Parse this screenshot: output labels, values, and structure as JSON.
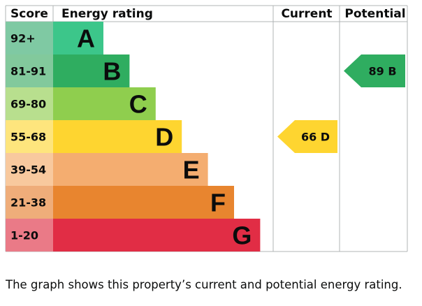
{
  "headers": {
    "score": "Score",
    "rating": "Energy rating",
    "current": "Current",
    "potential": "Potential"
  },
  "chart_data": {
    "type": "bar",
    "title": "",
    "bands": [
      {
        "letter": "A",
        "score": "92+",
        "color": "#3cc68a",
        "score_bg": "#7fc9a3"
      },
      {
        "letter": "B",
        "score": "81-91",
        "color": "#2fad60",
        "score_bg": "#82c99c"
      },
      {
        "letter": "C",
        "score": "69-80",
        "color": "#8fce4e",
        "score_bg": "#b8df8e"
      },
      {
        "letter": "D",
        "score": "55-68",
        "color": "#fed530",
        "score_bg": "#fee57d"
      },
      {
        "letter": "E",
        "score": "39-54",
        "color": "#f4ad70",
        "score_bg": "#f8c99e"
      },
      {
        "letter": "F",
        "score": "21-38",
        "color": "#e8852f",
        "score_bg": "#efad7a"
      },
      {
        "letter": "G",
        "score": "1-20",
        "color": "#e12d45",
        "score_bg": "#ea7a87"
      }
    ],
    "current": {
      "value": 66,
      "band": "D",
      "label": "66 D",
      "color": "#fed530",
      "text_color": "#0b0c0c"
    },
    "potential": {
      "value": 89,
      "band": "B",
      "label": "89 B",
      "color": "#2fad60",
      "text_color": "#0b0c0c"
    }
  },
  "caption": "The graph shows this property’s current and potential energy rating."
}
